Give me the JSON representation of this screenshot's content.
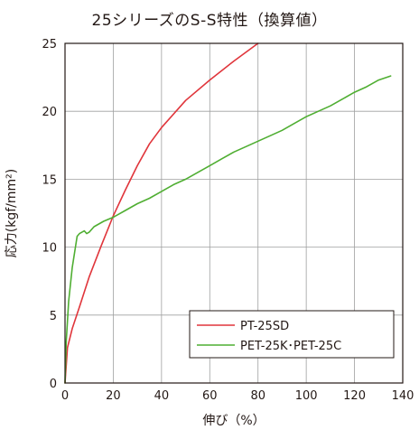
{
  "chart_data": {
    "type": "line",
    "title": "25シリーズのS-S特性（換算値）",
    "xlabel": "伸び（%）",
    "ylabel": "応力(kgf/mm²)",
    "xlim": [
      0,
      140
    ],
    "ylim": [
      0,
      25
    ],
    "xticks": [
      0,
      20,
      40,
      60,
      80,
      100,
      120,
      140
    ],
    "yticks": [
      0,
      5,
      10,
      15,
      20,
      25
    ],
    "grid": true,
    "legend_position": "bottom-right",
    "series": [
      {
        "name": "PT-25SD",
        "color": "#e0353b",
        "x": [
          0,
          1,
          3,
          6,
          10,
          15,
          20,
          25,
          30,
          35,
          40,
          50,
          60,
          70,
          80
        ],
        "y": [
          0,
          2.6,
          4.0,
          5.6,
          7.8,
          10.1,
          12.3,
          14.2,
          16.0,
          17.6,
          18.8,
          20.8,
          22.3,
          23.7,
          25.0
        ]
      },
      {
        "name": "PET-25K･PET-25C",
        "color": "#4fae32",
        "x": [
          0,
          0.5,
          1.5,
          3,
          5,
          6,
          8,
          9,
          10,
          12,
          14,
          16,
          20,
          25,
          30,
          35,
          40,
          45,
          50,
          55,
          60,
          65,
          70,
          75,
          80,
          85,
          90,
          95,
          100,
          105,
          110,
          115,
          120,
          125,
          130,
          135
        ],
        "y": [
          0,
          3.0,
          6.0,
          8.5,
          10.8,
          11.0,
          11.2,
          11.0,
          11.1,
          11.5,
          11.7,
          11.9,
          12.2,
          12.7,
          13.2,
          13.6,
          14.1,
          14.6,
          15.0,
          15.5,
          16.0,
          16.5,
          17.0,
          17.4,
          17.8,
          18.2,
          18.6,
          19.1,
          19.6,
          20.0,
          20.4,
          20.9,
          21.4,
          21.8,
          22.3,
          22.6
        ]
      }
    ]
  }
}
